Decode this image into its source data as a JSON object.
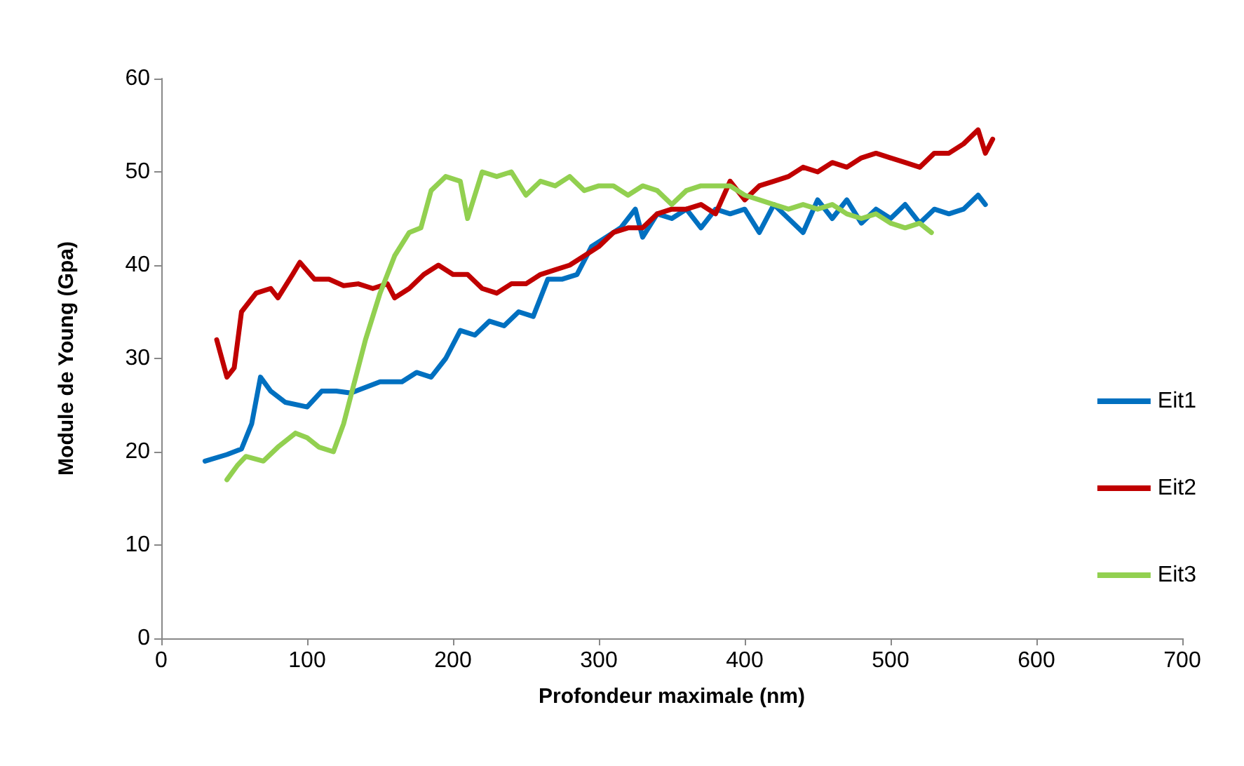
{
  "chart_data": {
    "type": "line",
    "xlabel": "Profondeur maximale (nm)",
    "ylabel": "Module de Young (Gpa)",
    "xlim": [
      0,
      700
    ],
    "xticks": [
      0,
      100,
      200,
      300,
      400,
      500,
      600,
      700
    ],
    "ylim": [
      0,
      60
    ],
    "yticks": [
      0,
      10,
      20,
      30,
      40,
      50,
      60
    ],
    "grid": false,
    "legend": "right",
    "marker": "none",
    "line_style": "solid",
    "series": [
      {
        "name": "Eit1",
        "color": "#0070c0",
        "x": [
          30,
          45,
          55,
          62,
          68,
          75,
          85,
          100,
          110,
          120,
          130,
          150,
          165,
          175,
          185,
          195,
          205,
          215,
          225,
          235,
          245,
          255,
          265,
          275,
          285,
          295,
          305,
          315,
          325,
          330,
          340,
          350,
          360,
          370,
          380,
          390,
          400,
          410,
          420,
          430,
          440,
          450,
          460,
          470,
          480,
          490,
          500,
          510,
          520,
          530,
          540,
          550,
          560,
          565
        ],
        "values": [
          19,
          19.7,
          20.3,
          23,
          28,
          26.5,
          25.3,
          24.8,
          26.5,
          26.5,
          26.3,
          27.5,
          27.5,
          28.5,
          28,
          30,
          33,
          32.5,
          34,
          33.5,
          35,
          34.5,
          38.5,
          38.5,
          39,
          42,
          43,
          44,
          46,
          43,
          45.5,
          45,
          46,
          44,
          46,
          45.5,
          46,
          43.5,
          46.5,
          45,
          43.5,
          47,
          45,
          47,
          44.5,
          46,
          45,
          46.5,
          44.5,
          46,
          45.5,
          46,
          47.5,
          46.5
        ]
      },
      {
        "name": "Eit2",
        "color": "#c00000",
        "x": [
          38,
          45,
          50,
          55,
          65,
          75,
          80,
          90,
          95,
          105,
          115,
          125,
          135,
          145,
          155,
          160,
          170,
          180,
          190,
          200,
          210,
          220,
          230,
          240,
          250,
          260,
          270,
          280,
          290,
          300,
          310,
          320,
          330,
          340,
          350,
          360,
          370,
          380,
          390,
          400,
          410,
          420,
          430,
          440,
          450,
          460,
          470,
          480,
          490,
          500,
          510,
          520,
          530,
          540,
          550,
          560,
          565,
          570
        ],
        "values": [
          32,
          28,
          29,
          35,
          37,
          37.5,
          36.5,
          39,
          40.3,
          38.5,
          38.5,
          37.8,
          38,
          37.5,
          38,
          36.5,
          37.5,
          39,
          40,
          39,
          39,
          37.5,
          37,
          38,
          38,
          39,
          39.5,
          40,
          41,
          42,
          43.5,
          44,
          44,
          45.5,
          46,
          46,
          46.5,
          45.5,
          49,
          47,
          48.5,
          49,
          49.5,
          50.5,
          50,
          51,
          50.5,
          51.5,
          52,
          51.5,
          51,
          50.5,
          52,
          52,
          53,
          54.5,
          52,
          53.5
        ]
      },
      {
        "name": "Eit3",
        "color": "#92d050",
        "x": [
          45,
          52,
          58,
          70,
          80,
          92,
          100,
          108,
          118,
          125,
          130,
          140,
          150,
          160,
          170,
          178,
          185,
          195,
          205,
          210,
          220,
          230,
          240,
          250,
          260,
          270,
          280,
          290,
          300,
          310,
          320,
          330,
          340,
          350,
          360,
          370,
          380,
          390,
          400,
          410,
          420,
          430,
          440,
          450,
          460,
          470,
          480,
          490,
          500,
          510,
          520,
          528
        ],
        "values": [
          17,
          18.5,
          19.5,
          19,
          20.5,
          22,
          21.5,
          20.5,
          20,
          23,
          26,
          32,
          37,
          41,
          43.5,
          44,
          48,
          49.5,
          49,
          45,
          50,
          49.5,
          50,
          47.5,
          49,
          48.5,
          49.5,
          48,
          48.5,
          48.5,
          47.5,
          48.5,
          48,
          46.5,
          48,
          48.5,
          48.5,
          48.5,
          47.5,
          47,
          46.5,
          46,
          46.5,
          46,
          46.5,
          45.5,
          45,
          45.5,
          44.5,
          44,
          44.5,
          43.5
        ]
      }
    ]
  }
}
